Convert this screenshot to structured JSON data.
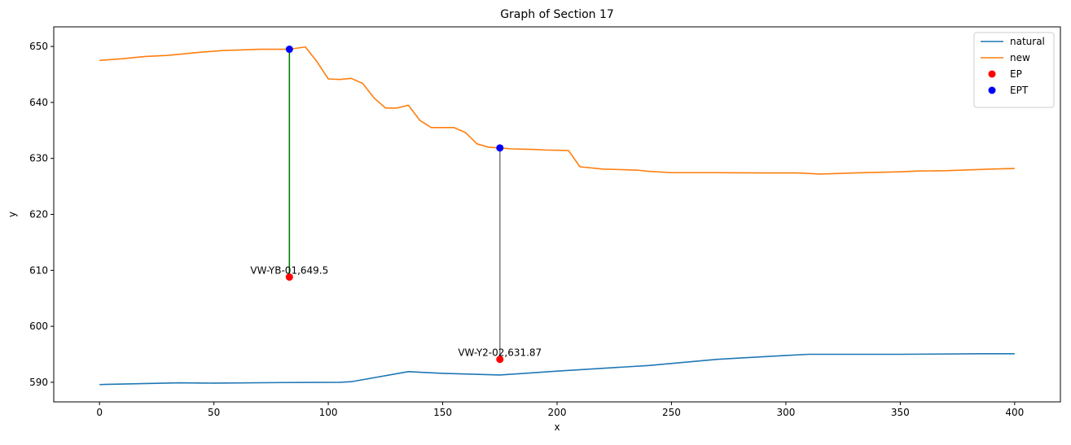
{
  "chart_data": {
    "type": "line",
    "title": "Graph of Section 17",
    "xlabel": "x",
    "ylabel": "y",
    "xlim": [
      -20,
      420
    ],
    "ylim": [
      586.5,
      653.5
    ],
    "xticks": [
      0,
      50,
      100,
      150,
      200,
      250,
      300,
      350,
      400
    ],
    "yticks": [
      590,
      600,
      610,
      620,
      630,
      640,
      650
    ],
    "grid": false,
    "legend_position": "top-right",
    "series": [
      {
        "name": "natural",
        "kind": "line",
        "color": "#1f77b4",
        "x": [
          0,
          35,
          50,
          80,
          105,
          110,
          135,
          150,
          175,
          200,
          240,
          270,
          300,
          310,
          350,
          385,
          400
        ],
        "y": [
          589.6,
          589.9,
          589.85,
          589.95,
          590.0,
          590.1,
          591.9,
          591.6,
          591.3,
          592.0,
          593.0,
          594.1,
          594.8,
          595.0,
          595.0,
          595.1,
          595.1
        ]
      },
      {
        "name": "new",
        "kind": "line",
        "color": "#ff7f0e",
        "x": [
          0,
          10,
          20,
          30,
          35,
          45,
          55,
          60,
          70,
          80,
          83,
          90,
          95,
          100,
          105,
          110,
          115,
          120,
          125,
          130,
          135,
          140,
          145,
          150,
          155,
          160,
          165,
          170,
          175,
          180,
          190,
          195,
          205,
          210,
          220,
          235,
          240,
          250,
          270,
          290,
          305,
          315,
          330,
          350,
          358,
          370,
          390,
          400
        ],
        "y": [
          647.5,
          647.8,
          648.2,
          648.4,
          648.6,
          649.0,
          649.3,
          649.35,
          649.5,
          649.5,
          649.5,
          649.9,
          647.3,
          644.2,
          644.1,
          644.3,
          643.4,
          640.8,
          639.0,
          639.0,
          639.5,
          636.8,
          635.5,
          635.5,
          635.5,
          634.6,
          632.6,
          632.0,
          631.87,
          631.7,
          631.6,
          631.5,
          631.4,
          628.5,
          628.1,
          627.9,
          627.7,
          627.45,
          627.45,
          627.4,
          627.4,
          627.2,
          627.4,
          627.6,
          627.75,
          627.8,
          628.1,
          628.2
        ]
      },
      {
        "name": "EP",
        "kind": "scatter",
        "color": "#ff0000",
        "x": [
          83,
          175
        ],
        "y": [
          608.8,
          594.1
        ]
      },
      {
        "name": "EPT",
        "kind": "scatter",
        "color": "#0000ff",
        "x": [
          83,
          175
        ],
        "y": [
          649.5,
          631.87
        ]
      }
    ],
    "connectors": [
      {
        "x": 83,
        "y0": 608.8,
        "y1": 649.5,
        "color": "#008000"
      },
      {
        "x": 175,
        "y0": 594.1,
        "y1": 631.87,
        "color": "#808080"
      }
    ],
    "annotations": [
      {
        "text": "VW-YB-01,649.5",
        "x": 83,
        "y": 608.8
      },
      {
        "text": "VW-Y2-02,631.87",
        "x": 175,
        "y": 594.1
      }
    ]
  }
}
